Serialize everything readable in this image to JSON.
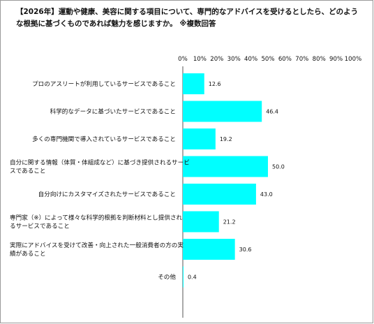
{
  "title": "【2026年】運動や健康、美容に関する項目について、専門的なアドバイスを受けるとしたら、どのような根拠に基づくものであれば魅力を感じますか。 ※複数回答",
  "chart_data": {
    "type": "bar",
    "orientation": "horizontal",
    "title": "【2026年】運動や健康、美容に関する項目について、専門的なアドバイスを受けるとしたら、どのような根拠に基づくものであれば魅力を感じますか。 ※複数回答",
    "categories": [
      [
        "プロのアスリートが利用しているサービスであること"
      ],
      [
        "科学的なデータに基づいたサービスであること"
      ],
      [
        "多くの専門機関で導入されているサービスであること"
      ],
      [
        "自分に関する情報（体質・体組成など）に基づき提供されるサービ",
        "スであること"
      ],
      [
        "自分向けにカスタマイズされたサービスであること"
      ],
      [
        "専門家（※）によって様々な科学的根拠を判断材料とし提供され",
        "るサービスであること"
      ],
      [
        "実際にアドバイスを受けて改善・向上された一般消費者の方の実",
        "績があること"
      ],
      [
        "その他"
      ]
    ],
    "values": [
      12.6,
      46.4,
      19.2,
      50.0,
      43.0,
      21.2,
      30.6,
      0.4
    ],
    "value_labels": [
      "12.6",
      "46.4",
      "19.2",
      "50.0",
      "43.0",
      "21.2",
      "30.6",
      "0.4"
    ],
    "xlim": [
      0,
      100
    ],
    "xticks": [
      "0%",
      "10%",
      "20%",
      "30%",
      "40%",
      "50%",
      "60%",
      "70%",
      "80%",
      "90%",
      "100%"
    ],
    "grid": false,
    "colors": {
      "bar": "#00FFFF",
      "axis": "#555555",
      "frame": "#9A9A9A"
    }
  }
}
